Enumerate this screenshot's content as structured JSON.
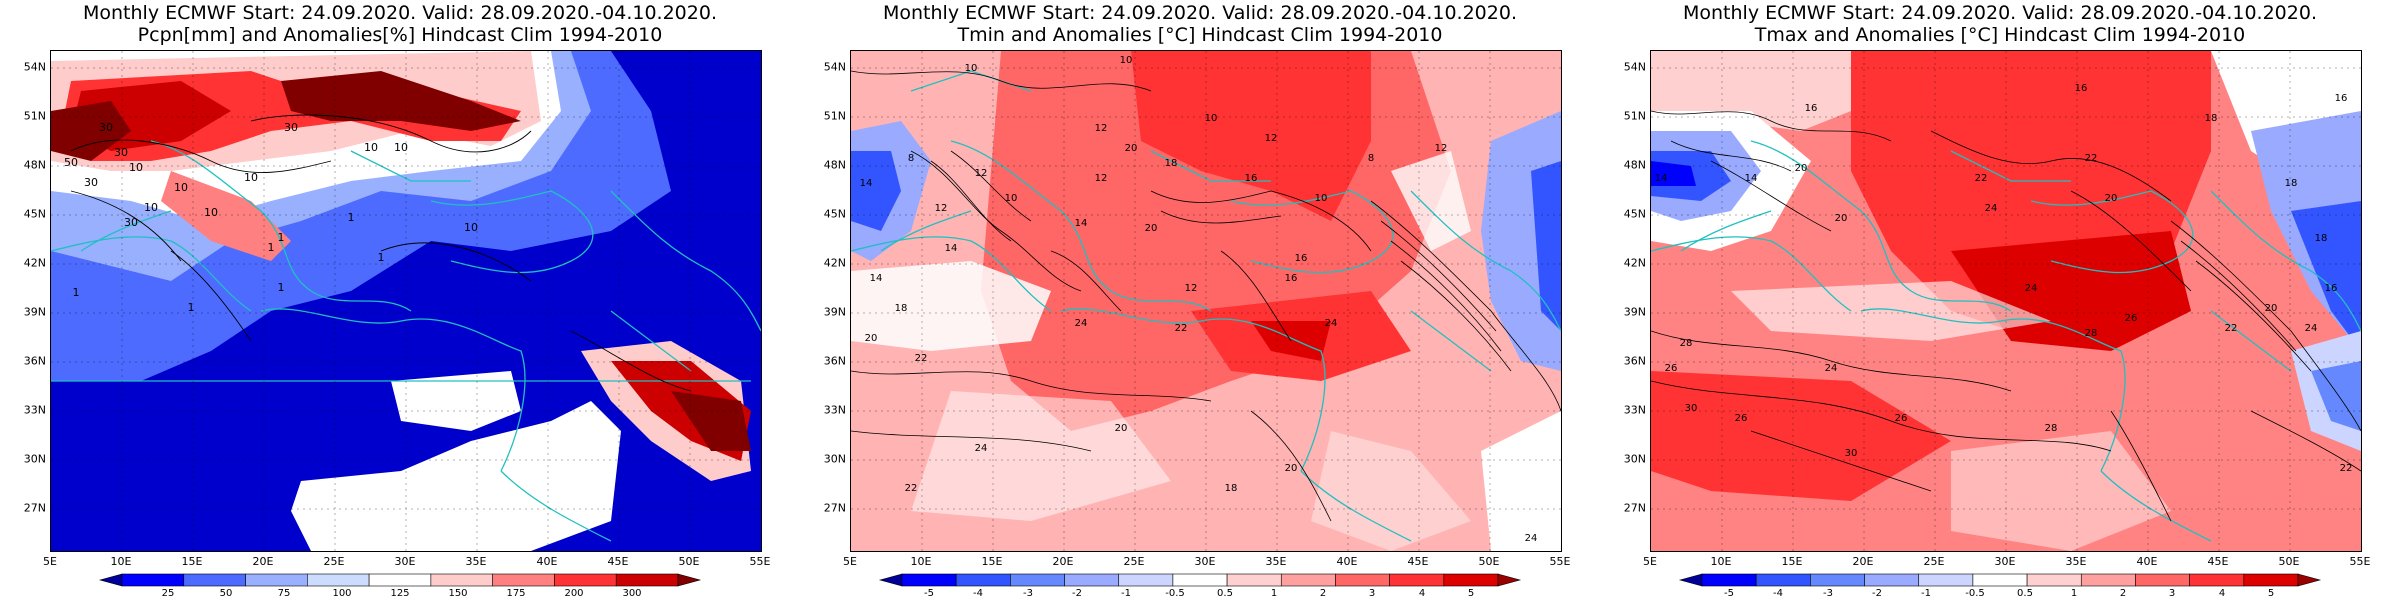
{
  "panels": [
    {
      "title_line1": "Monthly ECMWF Start: 24.09.2020. Valid: 28.09.2020.-04.10.2020.",
      "title_line2": "Pcpn[mm] and Anomalies[%] Hindcast Clim 1994-2010",
      "colorbar": {
        "labels": [
          "25",
          "50",
          "75",
          "100",
          "125",
          "150",
          "175",
          "200",
          "300"
        ],
        "colors": [
          "#000099",
          "#0000ff",
          "#4d6bff",
          "#99b0ff",
          "#ccdcff",
          "#ffffff",
          "#ffcccc",
          "#ff8080",
          "#ff3333",
          "#cc0000",
          "#800000"
        ]
      },
      "contour_labels": [
        "30",
        "30",
        "50",
        "30",
        "10",
        "10",
        "30",
        "10",
        "10",
        "10",
        "10",
        "30",
        "1",
        "1",
        "1",
        "10",
        "1",
        "1",
        "10",
        "1",
        "1"
      ]
    },
    {
      "title_line1": "Monthly ECMWF Start: 24.09.2020. Valid: 28.09.2020.-04.10.2020.",
      "title_line2": "Tmin and Anomalies [°C] Hindcast Clim 1994-2010",
      "colorbar": {
        "labels": [
          "-5",
          "-4",
          "-3",
          "-2",
          "-1",
          "-0.5",
          "0.5",
          "1",
          "2",
          "3",
          "4",
          "5"
        ],
        "colors": [
          "#000099",
          "#0000ff",
          "#3355ff",
          "#6688ff",
          "#99aaff",
          "#ccd5ff",
          "#ffffff",
          "#ffd0d0",
          "#ffa0a0",
          "#ff6666",
          "#ff3333",
          "#dd0000",
          "#990000"
        ]
      },
      "contour_labels": [
        "10",
        "10",
        "12",
        "8",
        "14",
        "12",
        "12",
        "10",
        "14",
        "12",
        "18",
        "20",
        "10",
        "12",
        "16",
        "10",
        "8",
        "12",
        "14",
        "20",
        "16",
        "12",
        "16",
        "24",
        "22",
        "24",
        "20",
        "22",
        "18",
        "14",
        "20",
        "24",
        "22",
        "18",
        "20",
        "24"
      ]
    },
    {
      "title_line1": "Monthly ECMWF Start: 24.09.2020. Valid: 28.09.2020.-04.10.2020.",
      "title_line2": "Tmax and Anomalies [°C] Hindcast Clim 1994-2010",
      "colorbar": {
        "labels": [
          "-5",
          "-4",
          "-3",
          "-2",
          "-1",
          "-0.5",
          "0.5",
          "1",
          "2",
          "3",
          "4",
          "5"
        ],
        "colors": [
          "#000099",
          "#0000ff",
          "#3355ff",
          "#6688ff",
          "#99aaff",
          "#ccd5ff",
          "#ffffff",
          "#ffd0d0",
          "#ffa0a0",
          "#ff6666",
          "#ff3333",
          "#dd0000",
          "#990000"
        ]
      },
      "contour_labels": [
        "16",
        "16",
        "18",
        "16",
        "14",
        "14",
        "20",
        "22",
        "22",
        "24",
        "20",
        "18",
        "20",
        "18",
        "24",
        "26",
        "28",
        "26",
        "24",
        "28",
        "30",
        "22",
        "26",
        "26",
        "28",
        "30",
        "24",
        "20",
        "16",
        "22"
      ]
    }
  ],
  "axes": {
    "lat_labels": [
      "54N",
      "51N",
      "48N",
      "45N",
      "42N",
      "39N",
      "36N",
      "33N",
      "30N",
      "27N"
    ],
    "lon_labels": [
      "5E",
      "10E",
      "15E",
      "20E",
      "25E",
      "30E",
      "35E",
      "40E",
      "45E",
      "50E",
      "55E"
    ]
  },
  "colors": {
    "coast": "#20c0c0",
    "contour": "#000000"
  }
}
